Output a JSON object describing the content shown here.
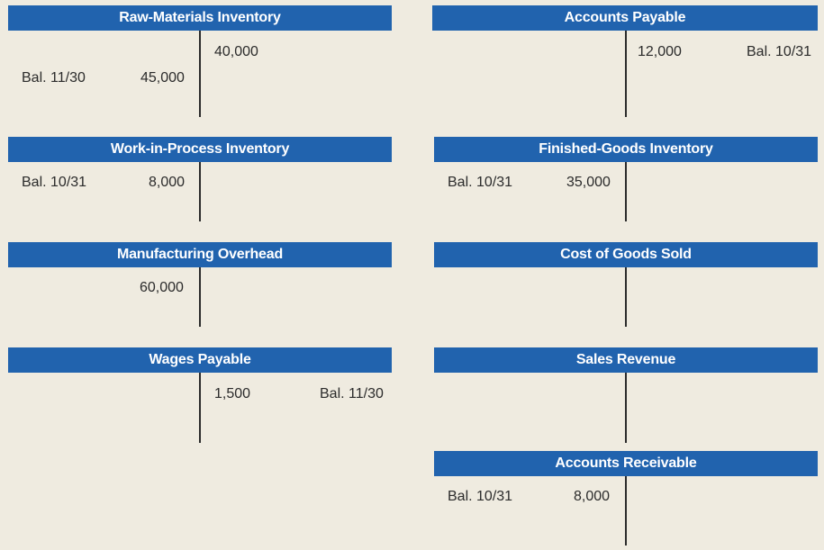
{
  "accounts": {
    "raw_materials": {
      "title": "Raw-Materials Inventory",
      "credit_1": "40,000",
      "debit_label": "Bal. 11/30",
      "debit_value": "45,000"
    },
    "accounts_payable": {
      "title": "Accounts Payable",
      "credit_1": "12,000",
      "credit_label": "Bal. 10/31"
    },
    "work_in_process": {
      "title": "Work-in-Process Inventory",
      "debit_label": "Bal. 10/31",
      "debit_value": "8,000"
    },
    "finished_goods": {
      "title": "Finished-Goods Inventory",
      "debit_label": "Bal. 10/31",
      "debit_value": "35,000"
    },
    "manufacturing_overhead": {
      "title": "Manufacturing Overhead",
      "debit_value": "60,000"
    },
    "cost_of_goods_sold": {
      "title": "Cost of Goods Sold"
    },
    "wages_payable": {
      "title": "Wages Payable",
      "credit_1": "1,500",
      "credit_label": "Bal. 11/30"
    },
    "sales_revenue": {
      "title": "Sales Revenue"
    },
    "accounts_receivable": {
      "title": "Accounts Receivable",
      "debit_label": "Bal. 10/31",
      "debit_value": "8,000"
    }
  },
  "colors": {
    "header_bar": "#2163ae",
    "background": "#efebe0",
    "text": "#2b2b2b"
  }
}
